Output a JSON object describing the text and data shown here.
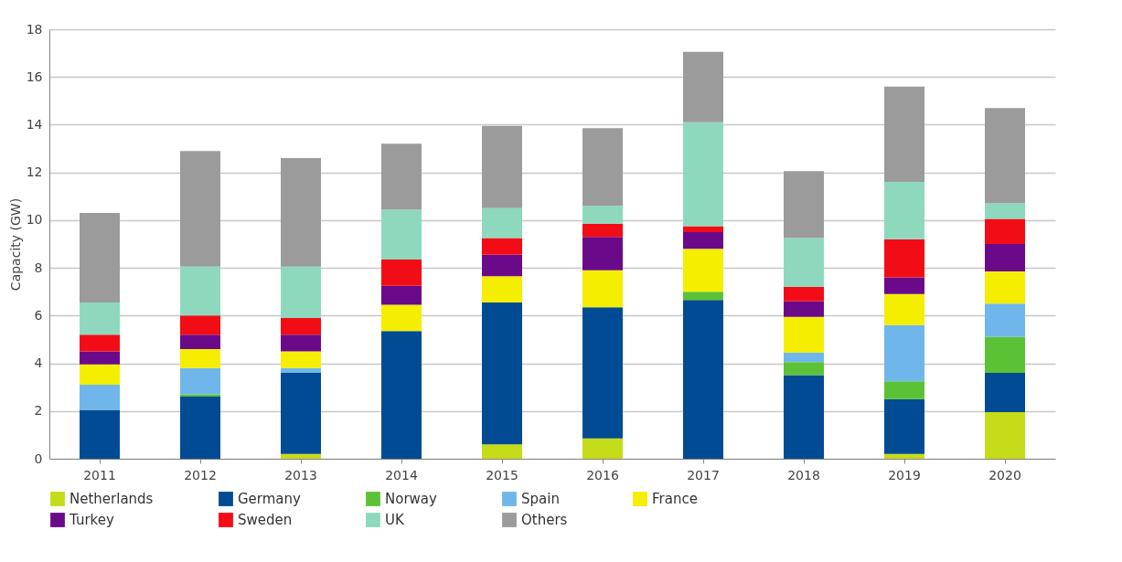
{
  "chart_data": {
    "type": "bar",
    "stacked": true,
    "ylabel": "Capacity (GW)",
    "categories": [
      "2011",
      "2012",
      "2013",
      "2014",
      "2015",
      "2016",
      "2017",
      "2018",
      "2019",
      "2020"
    ],
    "series": [
      {
        "name": "Netherlands",
        "color": "#c5dc18",
        "values": [
          0,
          0,
          0.2,
          0,
          0.6,
          0.85,
          0,
          0,
          0.2,
          1.95
        ]
      },
      {
        "name": "Germany",
        "color": "#004b93",
        "values": [
          2.05,
          2.6,
          3.4,
          5.35,
          5.95,
          5.5,
          6.65,
          3.5,
          2.3,
          1.65
        ]
      },
      {
        "name": "Norway",
        "color": "#5bc235",
        "values": [
          0,
          0.1,
          0,
          0,
          0,
          0,
          0.35,
          0.55,
          0.75,
          1.5
        ]
      },
      {
        "name": "Spain",
        "color": "#6fb7ea",
        "values": [
          1.05,
          1.1,
          0.2,
          0,
          0,
          0,
          0,
          0.4,
          2.35,
          1.4
        ]
      },
      {
        "name": "France",
        "color": "#f5ee00",
        "values": [
          0.85,
          0.8,
          0.7,
          1.1,
          1.1,
          1.55,
          1.8,
          1.5,
          1.3,
          1.35
        ]
      },
      {
        "name": "Turkey",
        "color": "#6a0a8a",
        "values": [
          0.55,
          0.6,
          0.7,
          0.8,
          0.9,
          1.4,
          0.7,
          0.65,
          0.7,
          1.15
        ]
      },
      {
        "name": "Sweden",
        "color": "#f20d16",
        "values": [
          0.7,
          0.8,
          0.7,
          1.1,
          0.7,
          0.55,
          0.25,
          0.6,
          1.6,
          1.05
        ]
      },
      {
        "name": "UK",
        "color": "#8ed9be",
        "values": [
          1.35,
          2.05,
          2.15,
          2.1,
          1.25,
          0.75,
          4.35,
          2.05,
          2.4,
          0.65
        ]
      },
      {
        "name": "Others",
        "color": "#9b9b9b",
        "values": [
          3.75,
          4.85,
          4.55,
          2.75,
          3.45,
          3.25,
          2.95,
          2.8,
          4.0,
          4.0
        ]
      }
    ],
    "ylim": [
      0,
      18
    ],
    "yticks": [
      0,
      2,
      4,
      6,
      8,
      10,
      12,
      14,
      16,
      18
    ],
    "grid": "y",
    "legend": "bottom"
  }
}
